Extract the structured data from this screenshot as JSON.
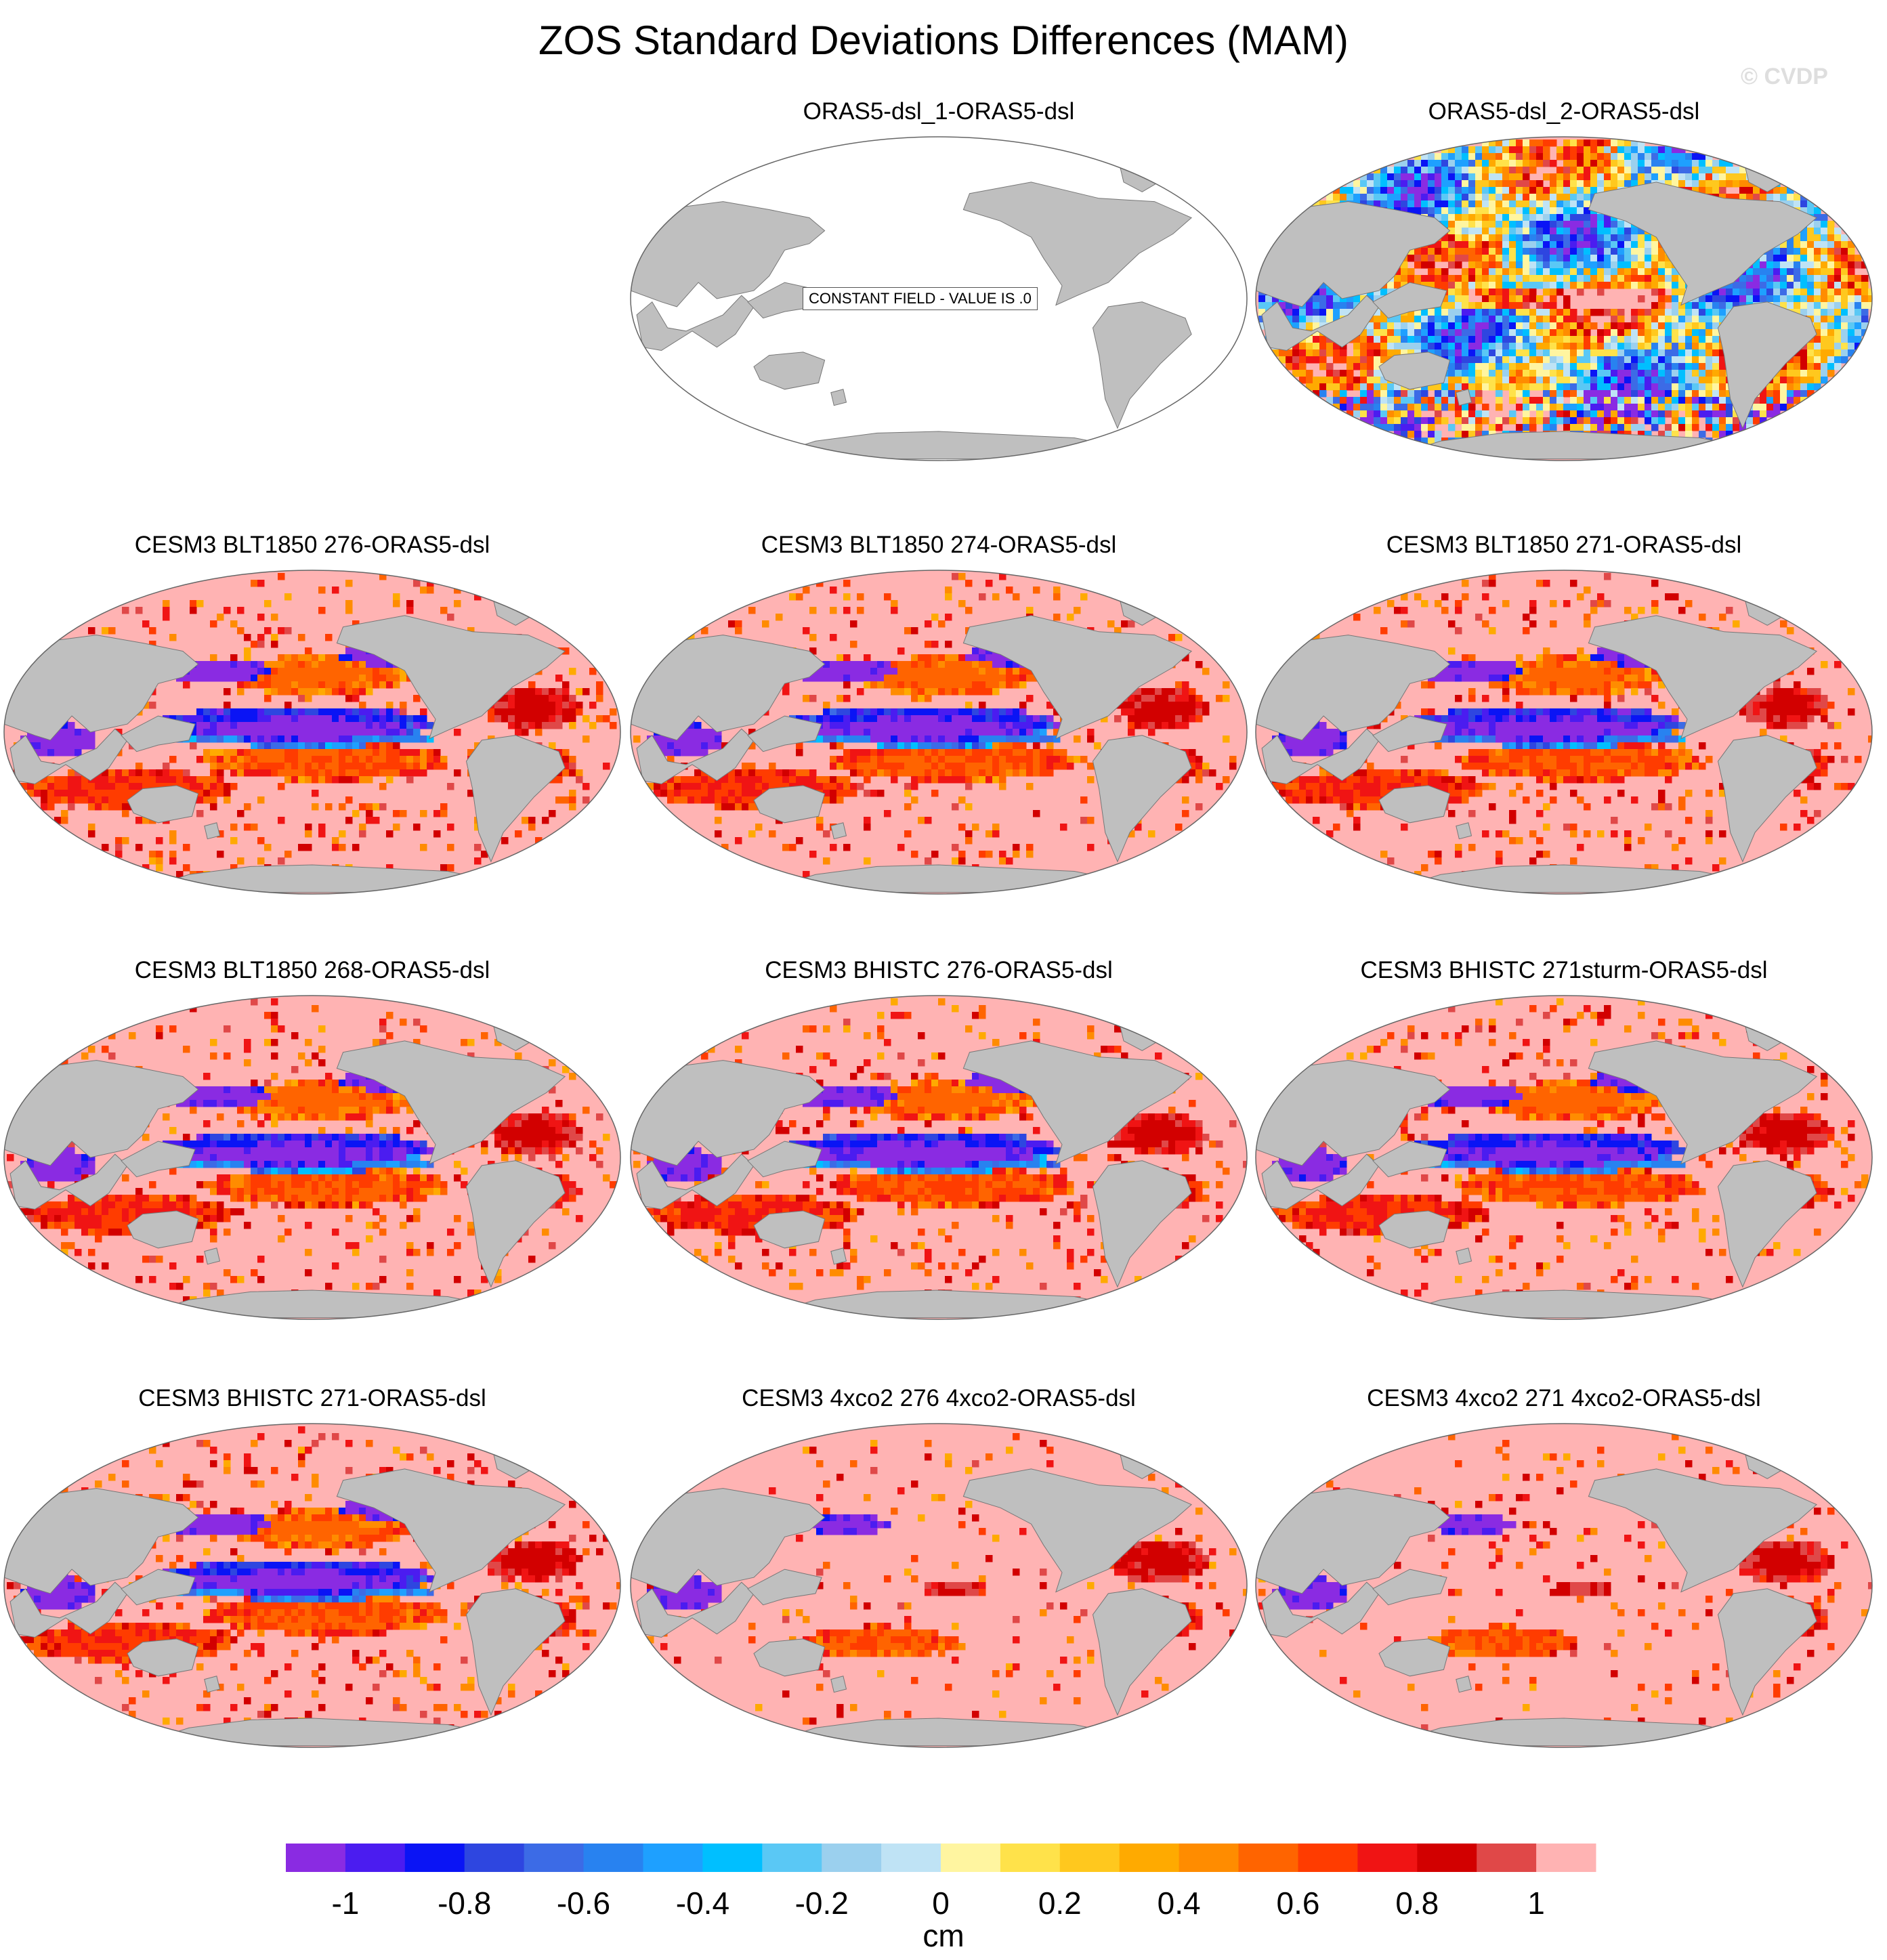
{
  "title": "ZOS Standard Deviations Differences (MAM)",
  "watermark": "© CVDP",
  "constant_field_label": "CONSTANT FIELD - VALUE IS .0",
  "colors": {
    "land": "#bfbfbf",
    "ocean_constant": "#ffffff",
    "ocean_positive_saturation": "#ffb3b3",
    "ocean_negative_saturation": "#7d1ef5"
  },
  "chart_data": {
    "type": "heatmap",
    "projection": "Robinson (global, Pacific-centered)",
    "variable": "ZOS standard deviation difference",
    "season": "MAM",
    "units": "cm",
    "panels": [
      {
        "title": "ORAS5-dsl_1-ORAS5-dsl",
        "pattern": "constant",
        "value": 0.0
      },
      {
        "title": "ORAS5-dsl_2-ORAS5-dsl",
        "pattern": "mixed"
      },
      {
        "title": "CESM3 BLT1850 276-ORAS5-dsl",
        "pattern": "model"
      },
      {
        "title": "CESM3 BLT1850 274-ORAS5-dsl",
        "pattern": "model"
      },
      {
        "title": "CESM3 BLT1850 271-ORAS5-dsl",
        "pattern": "model"
      },
      {
        "title": "CESM3 BLT1850 268-ORAS5-dsl",
        "pattern": "model"
      },
      {
        "title": "CESM3 BHISTC 276-ORAS5-dsl",
        "pattern": "model"
      },
      {
        "title": "CESM3 BHISTC 271sturm-ORAS5-dsl",
        "pattern": "model"
      },
      {
        "title": "CESM3 BHISTC 271-ORAS5-dsl",
        "pattern": "model"
      },
      {
        "title": "CESM3 4xco2 276 4xco2-ORAS5-dsl",
        "pattern": "4xco2"
      },
      {
        "title": "CESM3 4xco2 271 4xco2-ORAS5-dsl",
        "pattern": "4xco2"
      }
    ],
    "colorbar": {
      "label": "cm",
      "levels": [
        -1.1,
        -1.0,
        -0.9,
        -0.8,
        -0.7,
        -0.6,
        -0.5,
        -0.4,
        -0.3,
        -0.2,
        -0.1,
        0.0,
        0.1,
        0.2,
        0.3,
        0.4,
        0.5,
        0.6,
        0.7,
        0.8,
        0.9,
        1.0,
        1.1
      ],
      "tick_labels": [
        "-1",
        "-0.8",
        "-0.6",
        "-0.4",
        "-0.2",
        "0",
        "0.2",
        "0.4",
        "0.6",
        "0.8",
        "1"
      ],
      "colors": [
        "#8a2be2",
        "#4b1cf0",
        "#0a14f5",
        "#2e46e0",
        "#3c6be6",
        "#2882f0",
        "#1ea0ff",
        "#00bfff",
        "#5ac8f5",
        "#9bd0ee",
        "#bfe3f5",
        "#fff5a0",
        "#ffe24a",
        "#ffc81e",
        "#ffaa00",
        "#ff8c00",
        "#ff6400",
        "#ff3c00",
        "#f01414",
        "#d20000",
        "#e04848",
        "#ffb3b3"
      ]
    }
  }
}
